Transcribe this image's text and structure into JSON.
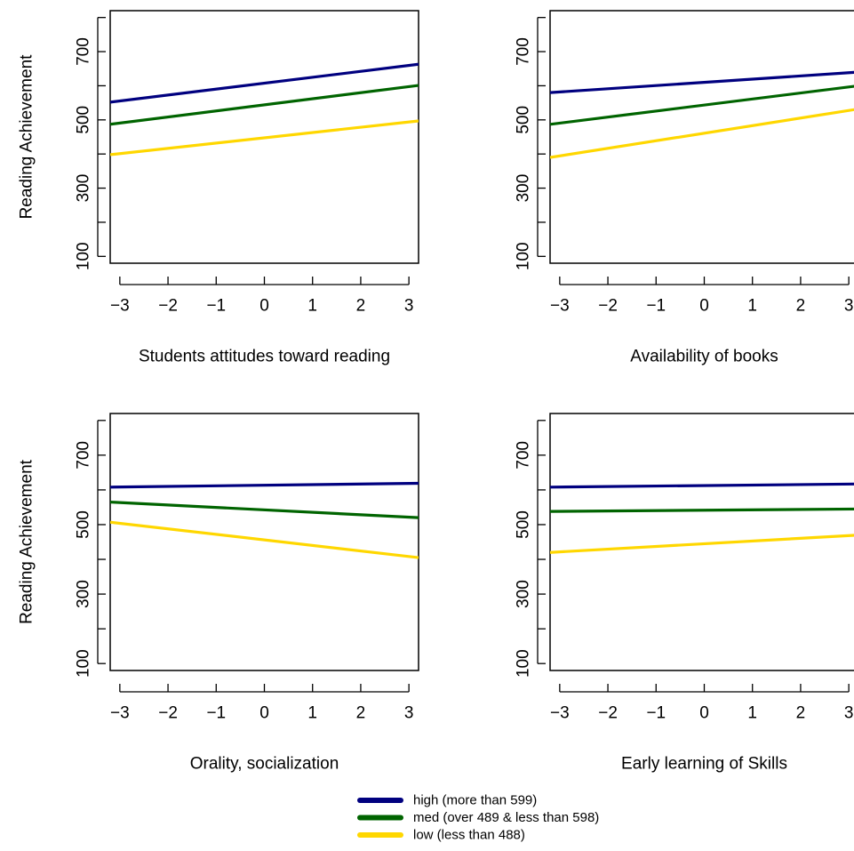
{
  "chart_data": [
    {
      "type": "line",
      "xlabel": "Students attitudes toward reading",
      "ylabel": "Reading Achievement",
      "xlim": [
        -3.2,
        3.2
      ],
      "ylim": [
        80,
        820
      ],
      "xticks": [
        "−3",
        "−2",
        "−1",
        "0",
        "1",
        "2",
        "3"
      ],
      "yticks": [
        "100",
        "300",
        "500",
        "700"
      ],
      "series": [
        {
          "key": "high",
          "x": [
            -3.2,
            3.2
          ],
          "y": [
            552,
            663
          ]
        },
        {
          "key": "med",
          "x": [
            -3.2,
            3.2
          ],
          "y": [
            487,
            601
          ]
        },
        {
          "key": "low",
          "x": [
            -3.2,
            3.2
          ],
          "y": [
            398,
            497
          ]
        }
      ]
    },
    {
      "type": "line",
      "xlabel": "Availability of books",
      "ylabel": "",
      "xlim": [
        -3.2,
        3.2
      ],
      "ylim": [
        80,
        820
      ],
      "xticks": [
        "−3",
        "−2",
        "−1",
        "0",
        "1",
        "2",
        "3"
      ],
      "yticks": [
        "100",
        "300",
        "500",
        "700"
      ],
      "series": [
        {
          "key": "high",
          "x": [
            -3.2,
            3.2
          ],
          "y": [
            580,
            640
          ]
        },
        {
          "key": "med",
          "x": [
            -3.2,
            3.2
          ],
          "y": [
            487,
            600
          ]
        },
        {
          "key": "low",
          "x": [
            -3.2,
            3.2
          ],
          "y": [
            390,
            532
          ]
        }
      ]
    },
    {
      "type": "line",
      "xlabel": "Orality, socialization",
      "ylabel": "Reading Achievement",
      "xlim": [
        -3.2,
        3.2
      ],
      "ylim": [
        80,
        820
      ],
      "xticks": [
        "−3",
        "−2",
        "−1",
        "0",
        "1",
        "2",
        "3"
      ],
      "yticks": [
        "100",
        "300",
        "500",
        "700"
      ],
      "series": [
        {
          "key": "high",
          "x": [
            -3.2,
            3.2
          ],
          "y": [
            608,
            619
          ]
        },
        {
          "key": "med",
          "x": [
            -3.2,
            3.2
          ],
          "y": [
            565,
            520
          ]
        },
        {
          "key": "low",
          "x": [
            -3.2,
            3.2
          ],
          "y": [
            507,
            405
          ]
        }
      ]
    },
    {
      "type": "line",
      "xlabel": "Early learning of Skills",
      "ylabel": "",
      "xlim": [
        -3.2,
        3.2
      ],
      "ylim": [
        80,
        820
      ],
      "xticks": [
        "−3",
        "−2",
        "−1",
        "0",
        "1",
        "2",
        "3"
      ],
      "yticks": [
        "100",
        "300",
        "500",
        "700"
      ],
      "series": [
        {
          "key": "high",
          "x": [
            -3.2,
            3.2
          ],
          "y": [
            608,
            617
          ]
        },
        {
          "key": "med",
          "x": [
            -3.2,
            3.2
          ],
          "y": [
            538,
            545
          ]
        },
        {
          "key": "low",
          "x": [
            -3.2,
            3.2
          ],
          "y": [
            420,
            470
          ]
        }
      ]
    }
  ],
  "legend": {
    "placement": "bottom-center",
    "items": [
      {
        "key": "high",
        "label": "high (more than 599)",
        "color": "#00007f"
      },
      {
        "key": "med",
        "label": "med (over 489 & less than 598)",
        "color": "#006400"
      },
      {
        "key": "low",
        "label": "low (less than 488)",
        "color": "#ffd700"
      }
    ]
  }
}
